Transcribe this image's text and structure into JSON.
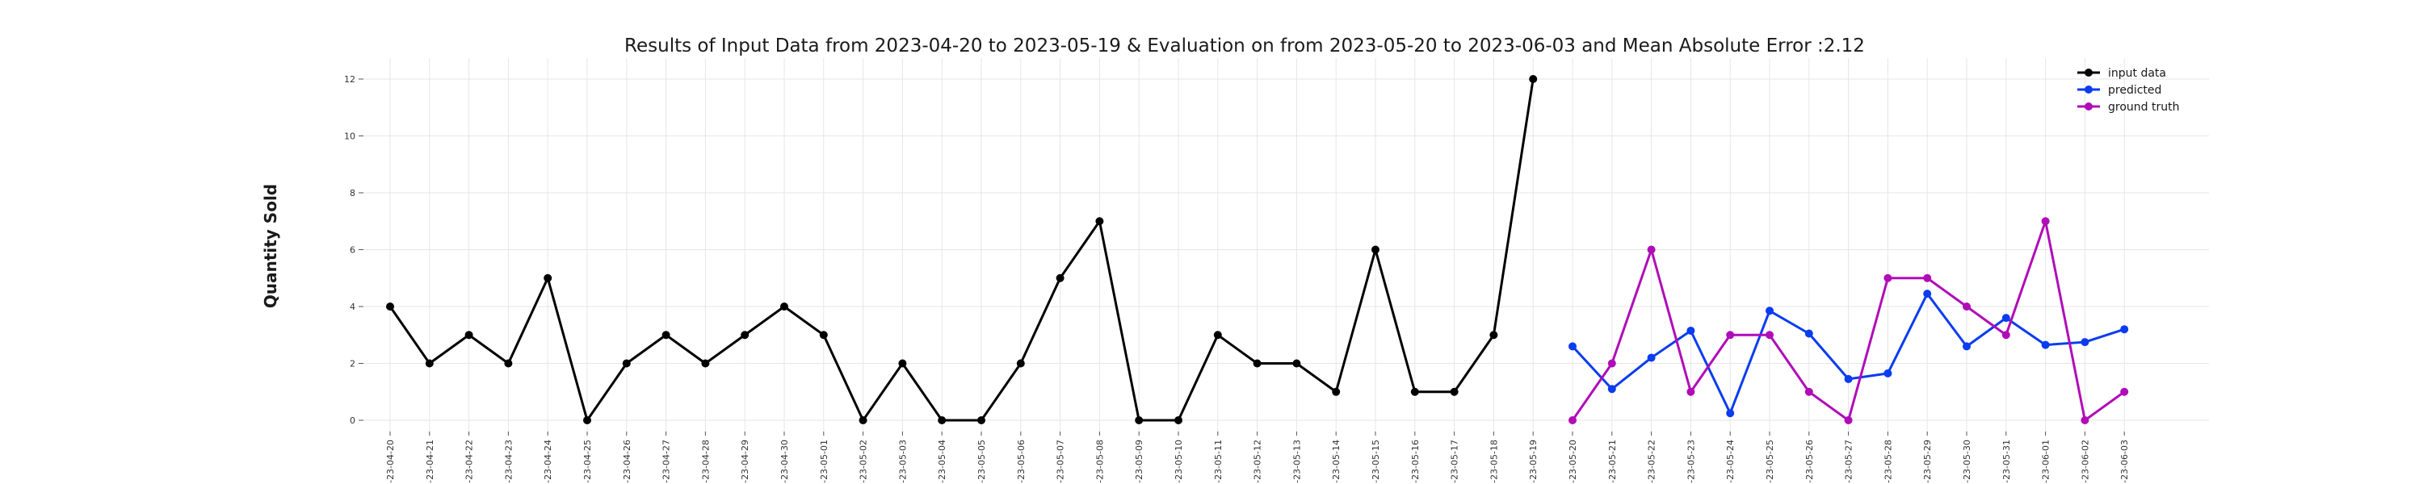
{
  "chart_data": {
    "type": "line",
    "title": "Results of Input Data from 2023-04-20 to 2023-05-19 & Evaluation on from 2023-05-20 to 2023-06-03 and Mean Absolute Error  :2.12",
    "xlabel": "",
    "ylabel": "Quantity Sold",
    "ylim": [
      0,
      12.5
    ],
    "yticks": [
      0,
      2,
      4,
      6,
      8,
      10,
      12
    ],
    "grid": true,
    "legend_position": "top-right",
    "x": [
      "2023-04-20",
      "2023-04-21",
      "2023-04-22",
      "2023-04-23",
      "2023-04-24",
      "2023-04-25",
      "2023-04-26",
      "2023-04-27",
      "2023-04-28",
      "2023-04-29",
      "2023-04-30",
      "2023-05-01",
      "2023-05-02",
      "2023-05-03",
      "2023-05-04",
      "2023-05-05",
      "2023-05-06",
      "2023-05-07",
      "2023-05-08",
      "2023-05-09",
      "2023-05-10",
      "2023-05-11",
      "2023-05-12",
      "2023-05-13",
      "2023-05-14",
      "2023-05-15",
      "2023-05-16",
      "2023-05-17",
      "2023-05-18",
      "2023-05-19",
      "2023-05-20",
      "2023-05-21",
      "2023-05-22",
      "2023-05-23",
      "2023-05-24",
      "2023-05-25",
      "2023-05-26",
      "2023-05-27",
      "2023-05-28",
      "2023-05-29",
      "2023-05-30",
      "2023-05-31",
      "2023-06-01",
      "2023-06-02",
      "2023-06-03"
    ],
    "xtick_labels": [
      "-23-04-20",
      "-23-04-21",
      "-23-04-22",
      "-23-04-23",
      "-23-04-24",
      "-23-04-25",
      "-23-04-26",
      "-23-04-27",
      "-23-04-28",
      "-23-04-29",
      "-23-04-30",
      "-23-05-01",
      "-23-05-02",
      "-23-05-03",
      "-23-05-04",
      "-23-05-05",
      "-23-05-06",
      "-23-05-07",
      "-23-05-08",
      "-23-05-09",
      "-23-05-10",
      "-23-05-11",
      "-23-05-12",
      "-23-05-13",
      "-23-05-14",
      "-23-05-15",
      "-23-05-16",
      "-23-05-17",
      "-23-05-18",
      "-23-05-19",
      "-23-05-20",
      "-23-05-21",
      "-23-05-22",
      "-23-05-23",
      "-23-05-24",
      "-23-05-25",
      "-23-05-26",
      "-23-05-27",
      "-23-05-28",
      "-23-05-29",
      "-23-05-30",
      "-23-05-31",
      "-23-06-01",
      "-23-06-02",
      "-23-06-03"
    ],
    "series": [
      {
        "name": "input data",
        "color": "#000000",
        "x": [
          "2023-04-20",
          "2023-04-21",
          "2023-04-22",
          "2023-04-23",
          "2023-04-24",
          "2023-04-25",
          "2023-04-26",
          "2023-04-27",
          "2023-04-28",
          "2023-04-29",
          "2023-04-30",
          "2023-05-01",
          "2023-05-02",
          "2023-05-03",
          "2023-05-04",
          "2023-05-05",
          "2023-05-06",
          "2023-05-07",
          "2023-05-08",
          "2023-05-09",
          "2023-05-10",
          "2023-05-11",
          "2023-05-12",
          "2023-05-13",
          "2023-05-14",
          "2023-05-15",
          "2023-05-16",
          "2023-05-17",
          "2023-05-18",
          "2023-05-19"
        ],
        "values": [
          4,
          2,
          3,
          2,
          5,
          0,
          2,
          3,
          2,
          3,
          4,
          3,
          0,
          2,
          0,
          0,
          2,
          5,
          7,
          0,
          0,
          3,
          2,
          2,
          1,
          6,
          1,
          1,
          3,
          12
        ]
      },
      {
        "name": "predicted",
        "color": "#0a3cf0",
        "x": [
          "2023-05-20",
          "2023-05-21",
          "2023-05-22",
          "2023-05-23",
          "2023-05-24",
          "2023-05-25",
          "2023-05-26",
          "2023-05-27",
          "2023-05-28",
          "2023-05-29",
          "2023-05-30",
          "2023-05-31",
          "2023-06-01",
          "2023-06-02",
          "2023-06-03"
        ],
        "values": [
          2.6,
          1.1,
          2.2,
          3.15,
          0.25,
          3.85,
          3.05,
          1.45,
          1.65,
          4.45,
          2.6,
          3.6,
          2.65,
          2.75,
          3.2
        ]
      },
      {
        "name": "ground truth",
        "color": "#b00cb8",
        "x": [
          "2023-05-20",
          "2023-05-21",
          "2023-05-22",
          "2023-05-23",
          "2023-05-24",
          "2023-05-25",
          "2023-05-26",
          "2023-05-27",
          "2023-05-28",
          "2023-05-29",
          "2023-05-30",
          "2023-05-31",
          "2023-06-01",
          "2023-06-02",
          "2023-06-03"
        ],
        "values": [
          0,
          2,
          6,
          1,
          3,
          3,
          1,
          0,
          5,
          5,
          4,
          3,
          7,
          0,
          1
        ]
      }
    ]
  }
}
